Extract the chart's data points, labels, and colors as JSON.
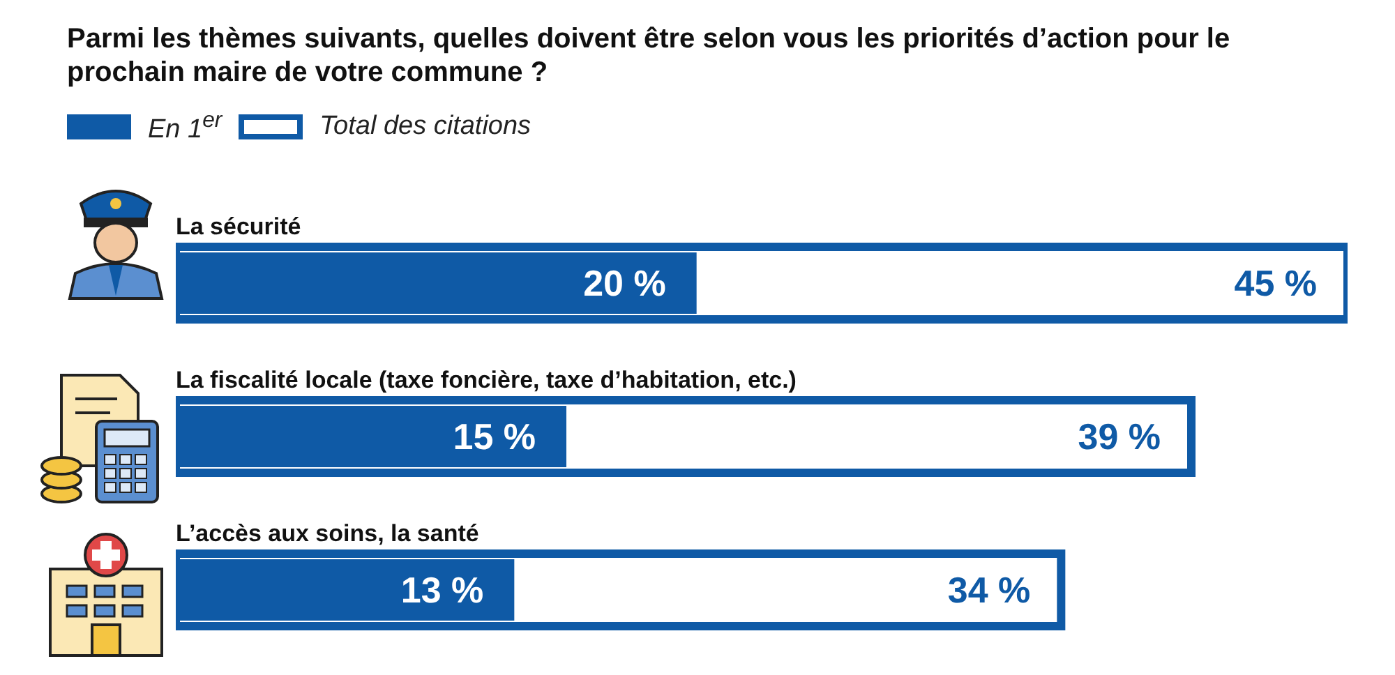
{
  "chart_data": {
    "type": "bar",
    "orientation": "horizontal",
    "title": "Parmi les thèmes suivants, quelles doivent être selon vous les priorités d’action pour le prochain maire de votre commune ?",
    "categories": [
      "La sécurité",
      "La fiscalité locale (taxe foncière, taxe d’habitation, etc.)",
      "L’accès aux soins, la santé"
    ],
    "series": [
      {
        "name": "Total des citations",
        "color": "#ffffff",
        "values": [
          45,
          39,
          34
        ],
        "value_labels": [
          "45 %",
          "39 %",
          "34 %"
        ]
      },
      {
        "name": "En 1$^{er}$",
        "color": "#0f5aa6",
        "values": [
          20,
          15,
          13
        ],
        "value_labels": [
          "20 %",
          "15 %",
          "13 %"
        ]
      }
    ],
    "legend": "top left"
  }
}
